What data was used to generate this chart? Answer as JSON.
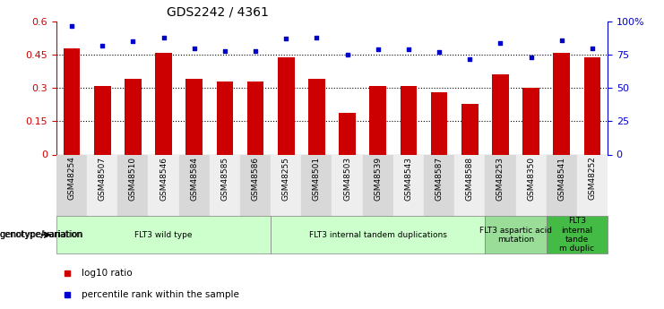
{
  "title": "GDS2242 / 4361",
  "samples": [
    "GSM48254",
    "GSM48507",
    "GSM48510",
    "GSM48546",
    "GSM48584",
    "GSM48585",
    "GSM48586",
    "GSM48255",
    "GSM48501",
    "GSM48503",
    "GSM48539",
    "GSM48543",
    "GSM48587",
    "GSM48588",
    "GSM48253",
    "GSM48350",
    "GSM48541",
    "GSM48252"
  ],
  "log10_ratio": [
    0.48,
    0.31,
    0.34,
    0.46,
    0.34,
    0.33,
    0.33,
    0.44,
    0.34,
    0.19,
    0.31,
    0.31,
    0.28,
    0.23,
    0.36,
    0.3,
    0.46,
    0.44
  ],
  "percentile_rank": [
    97,
    82,
    85,
    88,
    80,
    78,
    78,
    87,
    88,
    75,
    79,
    79,
    77,
    72,
    84,
    73,
    86,
    80
  ],
  "bar_color": "#cc0000",
  "dot_color": "#0000cc",
  "bg_color": "#ffffff",
  "left_ylim": [
    0,
    0.6
  ],
  "right_ylim": [
    0,
    100
  ],
  "left_yticks": [
    0,
    0.15,
    0.3,
    0.45,
    0.6
  ],
  "left_yticklabels": [
    "0",
    "0.15",
    "0.3",
    "0.45",
    "0.6"
  ],
  "right_yticks": [
    0,
    25,
    50,
    75,
    100
  ],
  "right_yticklabels": [
    "0",
    "25",
    "50",
    "75",
    "100%"
  ],
  "dotted_lines": [
    0.15,
    0.3,
    0.45
  ],
  "groups": [
    {
      "label": "FLT3 wild type",
      "start": 0,
      "end": 7,
      "color": "#ccffcc"
    },
    {
      "label": "FLT3 internal tandem duplications",
      "start": 7,
      "end": 14,
      "color": "#ccffcc"
    },
    {
      "label": "FLT3 aspartic acid\nmutation",
      "start": 14,
      "end": 16,
      "color": "#99dd99"
    },
    {
      "label": "FLT3\ninternal\ntande\nm duplic",
      "start": 16,
      "end": 18,
      "color": "#44bb44"
    }
  ],
  "genotype_label": "genotype/variation",
  "legend_bar_label": "log10 ratio",
  "legend_dot_label": "percentile rank within the sample",
  "xtick_bg": "#d8d8d8"
}
